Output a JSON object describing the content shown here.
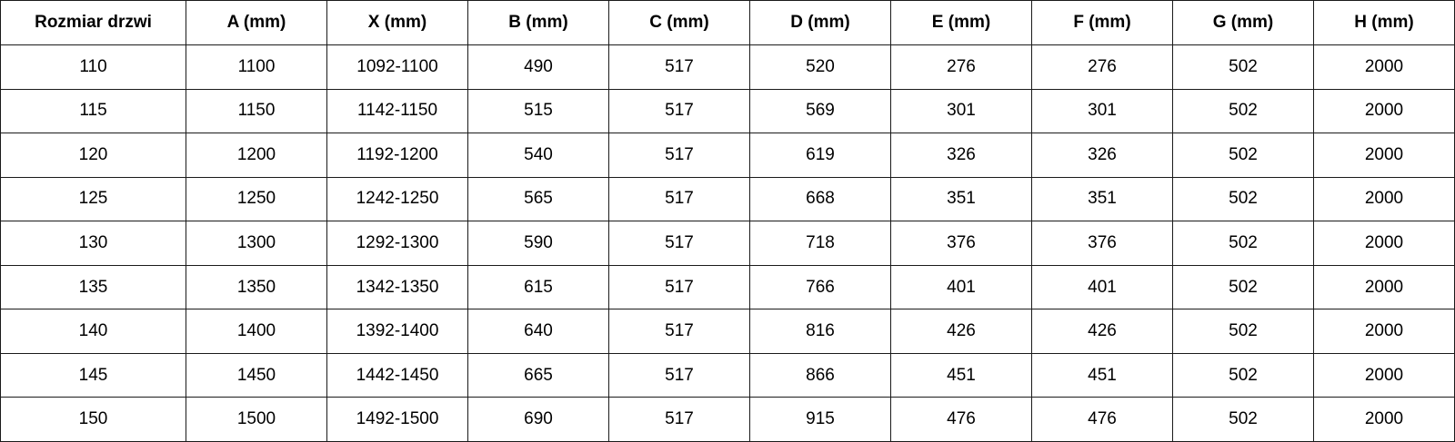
{
  "table": {
    "headers": [
      "Rozmiar drzwi",
      "A (mm)",
      "X (mm)",
      "B (mm)",
      "C (mm)",
      "D (mm)",
      "E (mm)",
      "F (mm)",
      "G (mm)",
      "H (mm)"
    ],
    "rows": [
      [
        "110",
        "1100",
        "1092-1100",
        "490",
        "517",
        "520",
        "276",
        "276",
        "502",
        "2000"
      ],
      [
        "115",
        "1150",
        "1142-1150",
        "515",
        "517",
        "569",
        "301",
        "301",
        "502",
        "2000"
      ],
      [
        "120",
        "1200",
        "1192-1200",
        "540",
        "517",
        "619",
        "326",
        "326",
        "502",
        "2000"
      ],
      [
        "125",
        "1250",
        "1242-1250",
        "565",
        "517",
        "668",
        "351",
        "351",
        "502",
        "2000"
      ],
      [
        "130",
        "1300",
        "1292-1300",
        "590",
        "517",
        "718",
        "376",
        "376",
        "502",
        "2000"
      ],
      [
        "135",
        "1350",
        "1342-1350",
        "615",
        "517",
        "766",
        "401",
        "401",
        "502",
        "2000"
      ],
      [
        "140",
        "1400",
        "1392-1400",
        "640",
        "517",
        "816",
        "426",
        "426",
        "502",
        "2000"
      ],
      [
        "145",
        "1450",
        "1442-1450",
        "665",
        "517",
        "866",
        "451",
        "451",
        "502",
        "2000"
      ],
      [
        "150",
        "1500",
        "1492-1500",
        "690",
        "517",
        "915",
        "476",
        "476",
        "502",
        "2000"
      ]
    ]
  }
}
